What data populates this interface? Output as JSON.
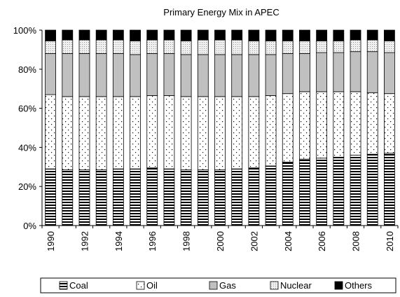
{
  "chart_data": {
    "type": "bar",
    "stacked": true,
    "percent": true,
    "title": "Primary Energy Mix in APEC",
    "xlabel": "",
    "ylabel": "",
    "ylim": [
      0,
      100
    ],
    "yticks": [
      "0%",
      "20%",
      "40%",
      "60%",
      "80%",
      "100%"
    ],
    "categories": [
      "1990",
      "1991",
      "1992",
      "1993",
      "1994",
      "1995",
      "1996",
      "1997",
      "1998",
      "1999",
      "2000",
      "2001",
      "2002",
      "2003",
      "2004",
      "2005",
      "2006",
      "2007",
      "2008",
      "2009",
      "2010"
    ],
    "xtick_labels": [
      "1990",
      "",
      "1992",
      "",
      "1994",
      "",
      "1996",
      "",
      "1998",
      "",
      "2000",
      "",
      "2002",
      "",
      "2004",
      "",
      "2006",
      "",
      "2008",
      "",
      "2010"
    ],
    "grid": false,
    "legend_position": "bottom",
    "series": [
      {
        "name": "Coal",
        "pattern": "horizontal-stripes",
        "color": "#000000",
        "values": [
          29,
          28.5,
          28.5,
          28.5,
          29,
          29,
          29.5,
          29,
          28.5,
          28.5,
          28.5,
          29,
          29.5,
          30.5,
          32.5,
          34,
          34.5,
          35,
          36,
          36.5,
          37
        ]
      },
      {
        "name": "Oil",
        "pattern": "dots",
        "color": "#000000",
        "values": [
          38,
          37.5,
          37.5,
          37.5,
          37,
          37,
          37,
          37.5,
          37.5,
          37.5,
          37.5,
          37,
          36.5,
          36,
          35,
          34.5,
          34,
          33.5,
          32.5,
          31.5,
          30.5
        ]
      },
      {
        "name": "Gas",
        "pattern": "solid",
        "color": "#c0c0c0",
        "values": [
          21,
          22,
          22,
          22,
          22,
          21.5,
          21.5,
          21.5,
          21.5,
          21.5,
          21.5,
          21.5,
          21.5,
          21,
          20.5,
          19.5,
          20,
          20,
          20.5,
          21,
          21
        ]
      },
      {
        "name": "Nuclear",
        "pattern": "fine-dots",
        "color": "#e6e6e6",
        "values": [
          6.5,
          7,
          7,
          7,
          7,
          7,
          7,
          7,
          7,
          7.5,
          7.5,
          7.5,
          7,
          7,
          6.5,
          6.5,
          6,
          6,
          6,
          6,
          6
        ]
      },
      {
        "name": "Others",
        "pattern": "solid",
        "color": "#000000",
        "values": [
          5.5,
          5,
          5,
          5,
          5,
          5.5,
          5,
          5,
          5.5,
          5,
          5,
          5,
          5.5,
          5.5,
          5.5,
          5.5,
          5.5,
          5.5,
          5,
          5,
          5.5
        ]
      }
    ]
  }
}
